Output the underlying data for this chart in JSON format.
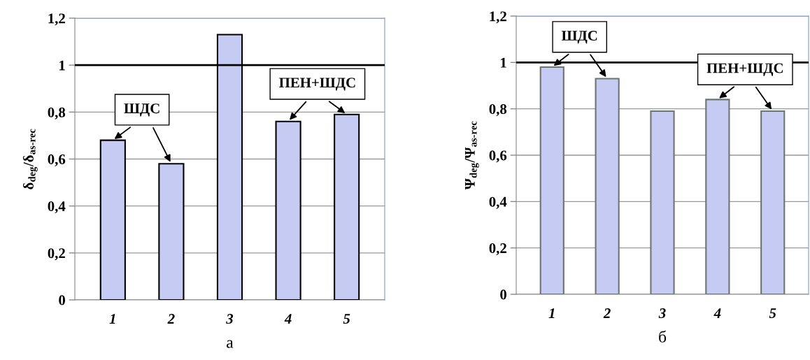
{
  "chart_data": [
    {
      "type": "bar",
      "categories": [
        "1",
        "2",
        "3",
        "4",
        "5"
      ],
      "values": [
        0.68,
        0.58,
        1.13,
        0.76,
        0.79
      ],
      "color": "#c5cbf3",
      "ylabel": "δ$_{deg}$/δ$_{as-rec}$",
      "xlabel": "а",
      "ylim": [
        0,
        1.2
      ],
      "yticks": [
        0,
        {
          "value": 0.2,
          "label": "0,2"
        },
        {
          "value": 0.4,
          "label": "0,4"
        },
        {
          "value": 0.6,
          "label": "0,6"
        },
        {
          "value": 0.8,
          "label": "0,8"
        },
        1,
        {
          "value": 1.2,
          "label": "1,2"
        }
      ],
      "grid": "y",
      "legend": false,
      "ref_lines": [
        {
          "axis": "y",
          "value": 1,
          "color": "#000000"
        }
      ],
      "annotations": [
        {
          "text": "ШДС",
          "x": "1",
          "y": 0.68
        },
        {
          "text": "ПЕН+ШДС",
          "x": "4",
          "y": 0.76
        }
      ]
    },
    {
      "type": "bar",
      "categories": [
        "1",
        "2",
        "3",
        "4",
        "5"
      ],
      "values": [
        0.98,
        0.93,
        0.79,
        0.84,
        0.79
      ],
      "color": "#c5cbf3",
      "ylabel": "Ψ$_{deg}$/Ψ$_{as-rec}$",
      "xlabel": "б",
      "ylim": [
        0,
        1.2
      ],
      "yticks": [
        0,
        {
          "value": 0.2,
          "label": "0,2"
        },
        {
          "value": 0.4,
          "label": "0,4"
        },
        {
          "value": 0.6,
          "label": "0,6"
        },
        {
          "value": 0.8,
          "label": "0,8"
        },
        1,
        {
          "value": 1.2,
          "label": "1,2"
        }
      ],
      "grid": "y",
      "legend": false,
      "ref_lines": [
        {
          "axis": "y",
          "value": 1,
          "color": "#000000"
        }
      ],
      "annotations": [
        {
          "text": "ШДС",
          "x": "1",
          "y": 0.98
        },
        {
          "text": "ПЕН+ШДС",
          "x": "4",
          "y": 0.84
        }
      ]
    }
  ]
}
